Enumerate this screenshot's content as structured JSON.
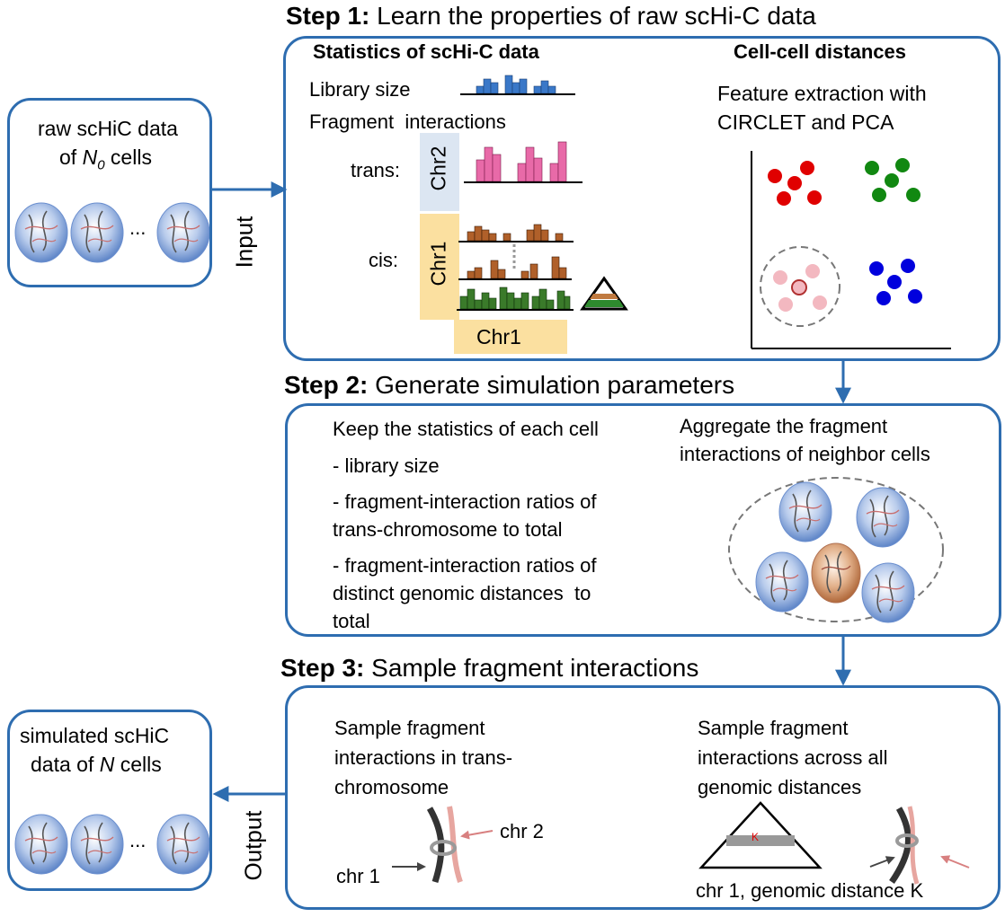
{
  "step1": {
    "prefix": "Step 1:",
    "title": "Learn the properties of raw scHi-C data",
    "stats_header": "Statistics of scHi-C data",
    "distances_header": "Cell-cell distances",
    "library_size": "Library size",
    "fragment_interactions": "Fragment  interactions",
    "trans_label": "trans:",
    "cis_label": "cis:",
    "chr2_label": "Chr2",
    "chr1_label": "Chr1",
    "chr1_bottom_label": "Chr1",
    "feature_line1": "Feature extraction with",
    "feature_line2": "CIRCLET and PCA"
  },
  "input": {
    "line1": "raw scHiC data",
    "line2_prefix": "of ",
    "line2_var": "N",
    "line2_sub": "0",
    "line2_suffix": " cells",
    "ellipsis": "...",
    "arrow_label": "Input"
  },
  "step2": {
    "prefix": "Step 2:",
    "title": "Generate simulation parameters",
    "keep_header": "Keep the statistics of each cell",
    "item1": "- library size",
    "item2_line1": "- fragment-interaction ratios of",
    "item2_line2": "trans-chromosome to total",
    "item3_line1": "- fragment-interaction ratios of",
    "item3_line2": "distinct genomic distances  to",
    "item3_line3": "total",
    "aggregate_line1": "Aggregate the fragment",
    "aggregate_line2": "interactions of neighbor cells"
  },
  "step3": {
    "prefix": "Step 3:",
    "title": "Sample fragment interactions",
    "trans_line1": "Sample fragment",
    "trans_line2": "interactions in trans-",
    "trans_line3": "chromosome",
    "chr2_label": "chr 2",
    "chr1_label": "chr 1",
    "all_line1": "Sample fragment",
    "all_line2": "interactions across all",
    "all_line3": "genomic distances",
    "k_label": "K",
    "bottom_label": "chr 1, genomic distance K"
  },
  "output": {
    "line1": "simulated scHiC",
    "line2_prefix": "data of ",
    "line2_var": "N",
    "line2_suffix": " cells",
    "ellipsis": "...",
    "arrow_label": "Output"
  },
  "colors": {
    "frame_blue": "#2e6db0",
    "chr2_band": "#dce6f2",
    "chr1_band": "#fbe0a0",
    "red": "#e00000",
    "green": "#118811",
    "blue": "#0000dd",
    "pink": "#f3b8c0"
  }
}
